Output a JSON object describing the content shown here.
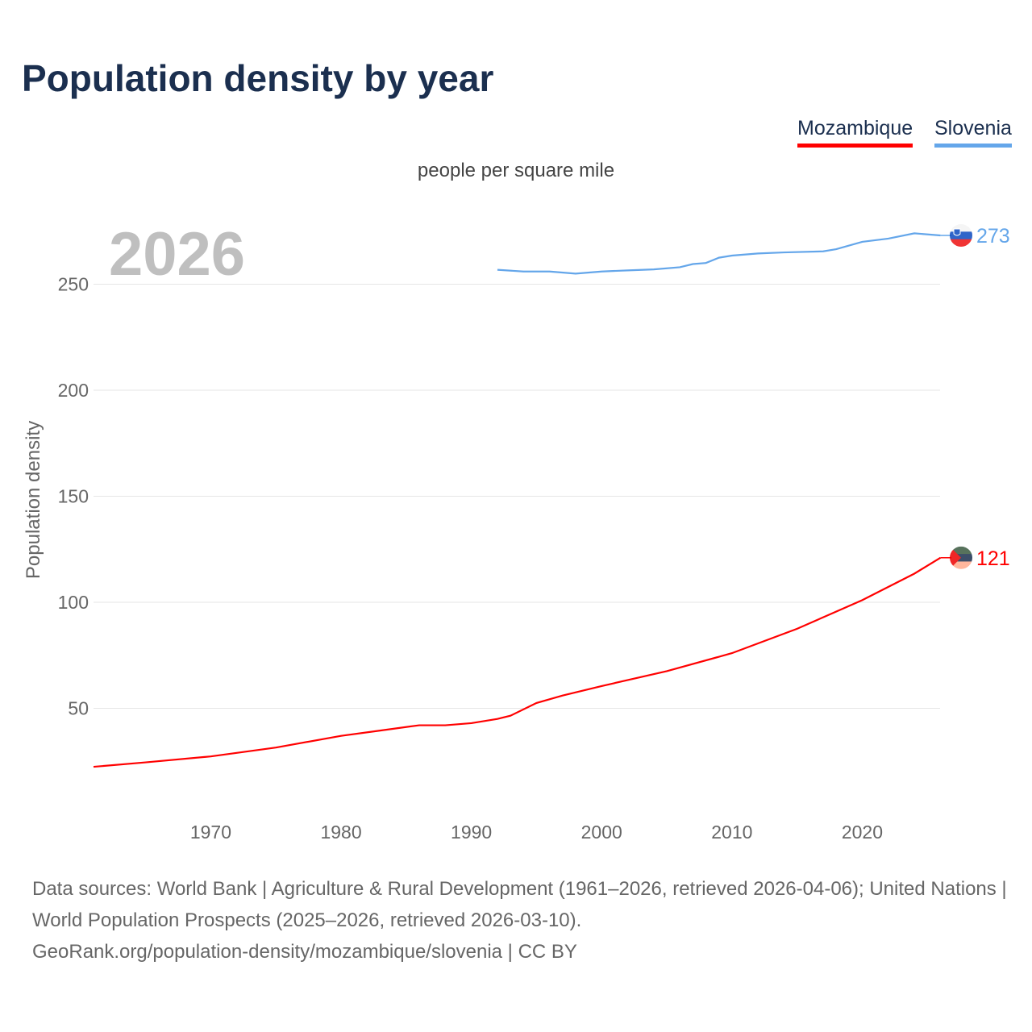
{
  "title": "Population density by year",
  "legend": [
    {
      "name": "Mozambique",
      "color": "#ff0000"
    },
    {
      "name": "Slovenia",
      "color": "#64a6ea"
    }
  ],
  "unit_label": "people per square mile",
  "current_year": "2026",
  "footer": {
    "line1": "Data sources: World Bank | Agriculture & Rural Development (1961–2026, retrieved 2026-04-06); United Nations | World Population Prospects (2025–2026, retrieved 2026-03-10).",
    "line2": "GeoRank.org/population-density/mozambique/slovenia | CC BY"
  },
  "chart_data": {
    "type": "line",
    "title": "Population density by year",
    "xlabel": "",
    "ylabel": "Population density",
    "xlim": [
      1961,
      2026
    ],
    "ylim": [
      0,
      280
    ],
    "xticks": [
      1970,
      1980,
      1990,
      2000,
      2010,
      2020
    ],
    "yticks": [
      50,
      100,
      150,
      200,
      250
    ],
    "grid": true,
    "legend_position": "top-right",
    "series": [
      {
        "name": "Mozambique",
        "color": "#ff0000",
        "end_label": "121",
        "x": [
          1961,
          1965,
          1970,
          1975,
          1980,
          1983,
          1986,
          1988,
          1990,
          1992,
          1993,
          1995,
          1997,
          2000,
          2005,
          2010,
          2015,
          2020,
          2024,
          2026
        ],
        "y": [
          22.4,
          24.5,
          27.3,
          31.5,
          37,
          39.5,
          42,
          42,
          43,
          45,
          46.5,
          52.5,
          56,
          60.5,
          67.5,
          76,
          87.5,
          101,
          113.5,
          121
        ]
      },
      {
        "name": "Slovenia",
        "color": "#64a6ea",
        "end_label": "273",
        "x": [
          1992,
          1994,
          1996,
          1998,
          2000,
          2002,
          2004,
          2006,
          2007,
          2008,
          2009,
          2010,
          2012,
          2014,
          2017,
          2018,
          2020,
          2022,
          2024,
          2026
        ],
        "y": [
          256.8,
          256,
          256,
          255,
          256,
          256.5,
          257,
          258,
          259.5,
          260,
          262.5,
          263.5,
          264.5,
          265,
          265.5,
          266.5,
          270,
          271.5,
          274,
          273
        ]
      }
    ]
  }
}
